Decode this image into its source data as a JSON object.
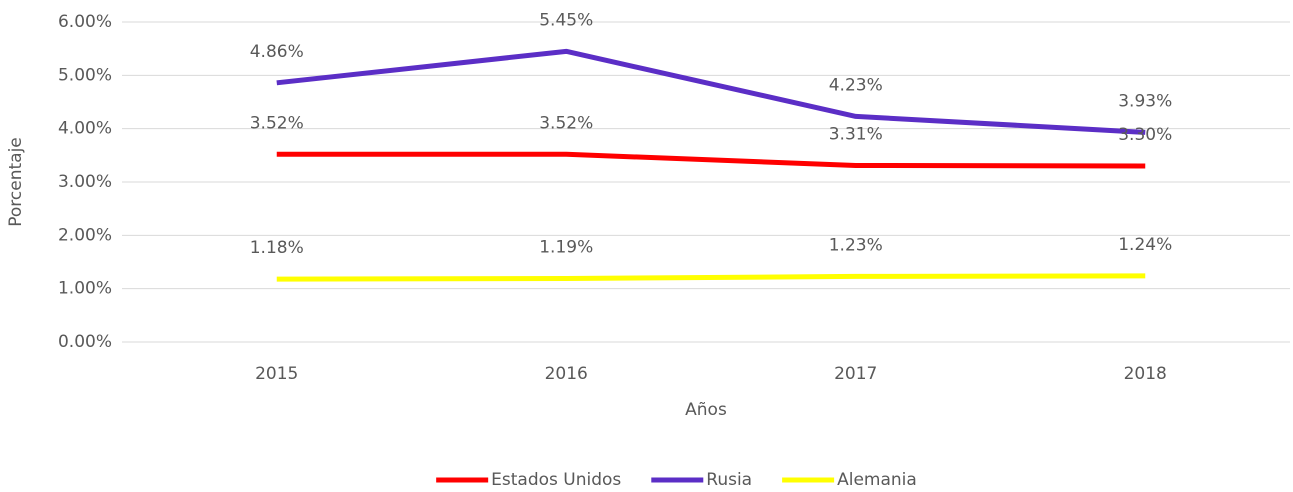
{
  "chart_data": {
    "type": "line",
    "categories": [
      "2015",
      "2016",
      "2017",
      "2018"
    ],
    "series": [
      {
        "name": "Estados Unidos",
        "color": "#ff0000",
        "values": [
          3.52,
          3.52,
          3.31,
          3.3
        ],
        "value_labels": [
          "3.52%",
          "3.52%",
          "3.31%",
          "3.30%"
        ]
      },
      {
        "name": "Rusia",
        "color": "#5b2ec6",
        "values": [
          4.86,
          5.45,
          4.23,
          3.93
        ],
        "value_labels": [
          "4.86%",
          "5.45%",
          "4.23%",
          "3.93%"
        ]
      },
      {
        "name": "Alemania",
        "color": "#ffff00",
        "values": [
          1.18,
          1.19,
          1.23,
          1.24
        ],
        "value_labels": [
          "1.18%",
          "1.19%",
          "1.23%",
          "1.24%"
        ]
      }
    ],
    "ylim": [
      0,
      6
    ],
    "yticks": [
      {
        "value": 0,
        "label": "0.00%"
      },
      {
        "value": 1,
        "label": "1.00%"
      },
      {
        "value": 2,
        "label": "2.00%"
      },
      {
        "value": 3,
        "label": "3.00%"
      },
      {
        "value": 4,
        "label": "4.00%"
      },
      {
        "value": 5,
        "label": "5.00%"
      },
      {
        "value": 6,
        "label": "6.00%"
      }
    ],
    "y_label": "Porcentaje",
    "x_label": "Años",
    "grid": true,
    "legend": "bottom"
  }
}
